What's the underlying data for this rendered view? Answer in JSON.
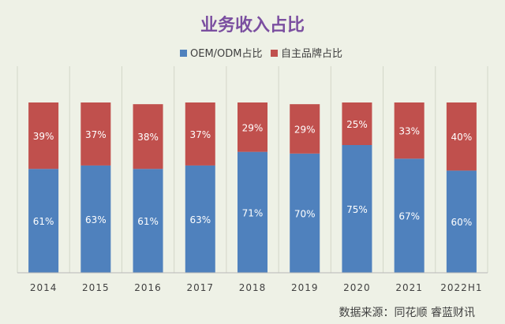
{
  "chart_data": {
    "type": "bar",
    "stacked": true,
    "title": "业务收入占比",
    "categories": [
      "2014",
      "2015",
      "2016",
      "2017",
      "2018",
      "2019",
      "2020",
      "2021",
      "2022H1"
    ],
    "series": [
      {
        "name": "OEM/ODM占比",
        "color": "#4f81bd",
        "values": [
          61,
          63,
          61,
          63,
          71,
          70,
          75,
          67,
          60
        ],
        "labels": [
          "61%",
          "63%",
          "61%",
          "63%",
          "71%",
          "70%",
          "75%",
          "67%",
          "60%"
        ]
      },
      {
        "name": "自主品牌占比",
        "color": "#c0504d",
        "values": [
          39,
          37,
          38,
          37,
          29,
          29,
          25,
          33,
          40
        ],
        "labels": [
          "39%",
          "37%",
          "38%",
          "37%",
          "29%",
          "29%",
          "25%",
          "33%",
          "40%"
        ]
      }
    ],
    "ylim": [
      0,
      100
    ],
    "grid": "vertical",
    "legend_position": "top"
  },
  "source": "数据来源：同花顺  睿蓝财讯",
  "colors": {
    "background": "#eef1e6",
    "title": "#7b4fa0",
    "grid": "#d3d6c8",
    "axis": "#b8b8b8",
    "label": "#ffffff",
    "text": "#404040"
  }
}
